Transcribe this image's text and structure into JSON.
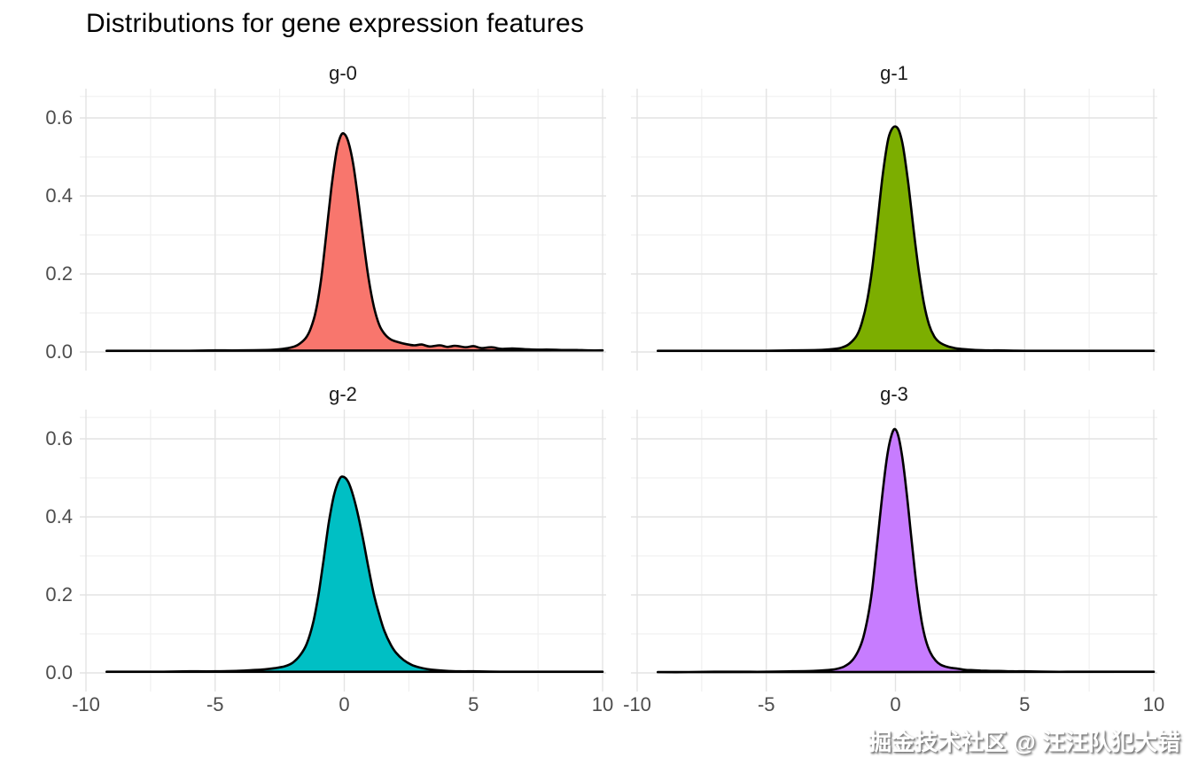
{
  "title": "Distributions for gene expression features",
  "watermark": {
    "text": "掘金技术社区 @ 汪汪队犯大错"
  },
  "chart_data": {
    "type": "area",
    "variant": "faceted-density",
    "title": "Distributions for gene expression features",
    "facets": [
      "g-0",
      "g-1",
      "g-2",
      "g-3"
    ],
    "xlabel": "",
    "ylabel": "",
    "legend": "none",
    "grid": "on",
    "xlim": [
      -10.25,
      10.15
    ],
    "ylim": [
      -0.048,
      0.675
    ],
    "x_ticks": [
      -10,
      -5,
      0,
      5,
      10
    ],
    "x_tick_labels": [
      "-10",
      "-5",
      "0",
      "5",
      "10"
    ],
    "x_minor_gridlines": [
      -7.5,
      -2.5,
      2.5,
      7.5
    ],
    "y_ticks": [
      0.0,
      0.2,
      0.4,
      0.6
    ],
    "y_tick_labels": [
      "0.0",
      "0.2",
      "0.4",
      "0.6"
    ],
    "y_minor_gridlines": [
      0.1,
      0.3,
      0.5,
      0.655
    ],
    "colors": {
      "axis_text": "#4d4d4d",
      "strip_text": "#1a1a1a",
      "grid_major": "#e3e3e3",
      "grid_minor": "#f0f0f0",
      "curve_outline": "#000000"
    },
    "panels": [
      {
        "label": "g-0",
        "fill": "#F8766D",
        "peak": {
          "x": 0,
          "density": 0.56
        },
        "density_points": [
          [
            -9.2,
            0.003
          ],
          [
            -8,
            0.003
          ],
          [
            -7,
            0.003
          ],
          [
            -6,
            0.003
          ],
          [
            -5,
            0.004
          ],
          [
            -4,
            0.004
          ],
          [
            -3,
            0.005
          ],
          [
            -2.5,
            0.007
          ],
          [
            -2.1,
            0.011
          ],
          [
            -1.8,
            0.018
          ],
          [
            -1.5,
            0.035
          ],
          [
            -1.3,
            0.06
          ],
          [
            -1.1,
            0.105
          ],
          [
            -0.9,
            0.185
          ],
          [
            -0.7,
            0.3
          ],
          [
            -0.5,
            0.42
          ],
          [
            -0.3,
            0.515
          ],
          [
            -0.15,
            0.552
          ],
          [
            -0.02,
            0.56
          ],
          [
            0.15,
            0.54
          ],
          [
            0.35,
            0.48
          ],
          [
            0.55,
            0.385
          ],
          [
            0.75,
            0.28
          ],
          [
            0.95,
            0.185
          ],
          [
            1.15,
            0.115
          ],
          [
            1.35,
            0.07
          ],
          [
            1.55,
            0.047
          ],
          [
            1.8,
            0.032
          ],
          [
            2.1,
            0.025
          ],
          [
            2.4,
            0.02
          ],
          [
            2.7,
            0.017
          ],
          [
            3,
            0.019
          ],
          [
            3.3,
            0.014
          ],
          [
            3.7,
            0.017
          ],
          [
            4,
            0.013
          ],
          [
            4.3,
            0.016
          ],
          [
            4.7,
            0.012
          ],
          [
            5,
            0.015
          ],
          [
            5.3,
            0.01
          ],
          [
            5.7,
            0.012
          ],
          [
            6.1,
            0.008
          ],
          [
            6.5,
            0.009
          ],
          [
            7,
            0.007
          ],
          [
            7.5,
            0.006
          ],
          [
            8,
            0.006
          ],
          [
            8.5,
            0.005
          ],
          [
            9,
            0.005
          ],
          [
            9.5,
            0.004
          ],
          [
            10,
            0.004
          ]
        ]
      },
      {
        "label": "g-1",
        "fill": "#7CAE00",
        "peak": {
          "x": 0,
          "density": 0.58
        },
        "density_points": [
          [
            -9.2,
            0.003
          ],
          [
            -8,
            0.003
          ],
          [
            -7,
            0.003
          ],
          [
            -6,
            0.003
          ],
          [
            -5,
            0.003
          ],
          [
            -4,
            0.004
          ],
          [
            -3,
            0.005
          ],
          [
            -2.5,
            0.007
          ],
          [
            -2.1,
            0.011
          ],
          [
            -1.8,
            0.02
          ],
          [
            -1.5,
            0.042
          ],
          [
            -1.3,
            0.075
          ],
          [
            -1.1,
            0.13
          ],
          [
            -0.9,
            0.215
          ],
          [
            -0.7,
            0.33
          ],
          [
            -0.5,
            0.45
          ],
          [
            -0.3,
            0.54
          ],
          [
            -0.15,
            0.57
          ],
          [
            0,
            0.578
          ],
          [
            0.15,
            0.565
          ],
          [
            0.3,
            0.525
          ],
          [
            0.5,
            0.43
          ],
          [
            0.7,
            0.315
          ],
          [
            0.9,
            0.21
          ],
          [
            1.1,
            0.125
          ],
          [
            1.3,
            0.07
          ],
          [
            1.5,
            0.04
          ],
          [
            1.7,
            0.025
          ],
          [
            2,
            0.015
          ],
          [
            2.3,
            0.01
          ],
          [
            2.7,
            0.007
          ],
          [
            3.1,
            0.005
          ],
          [
            3.6,
            0.004
          ],
          [
            4,
            0.004
          ],
          [
            5,
            0.003
          ],
          [
            6,
            0.003
          ],
          [
            7,
            0.003
          ],
          [
            8,
            0.003
          ],
          [
            9,
            0.003
          ],
          [
            10,
            0.003
          ]
        ]
      },
      {
        "label": "g-2",
        "fill": "#00BFC4",
        "peak": {
          "x": 0,
          "density": 0.5
        },
        "density_points": [
          [
            -9.2,
            0.003
          ],
          [
            -8,
            0.003
          ],
          [
            -7,
            0.003
          ],
          [
            -6,
            0.004
          ],
          [
            -5,
            0.004
          ],
          [
            -4.2,
            0.005
          ],
          [
            -3.6,
            0.007
          ],
          [
            -3.1,
            0.009
          ],
          [
            -2.7,
            0.012
          ],
          [
            -2.3,
            0.017
          ],
          [
            -2,
            0.026
          ],
          [
            -1.7,
            0.046
          ],
          [
            -1.45,
            0.075
          ],
          [
            -1.2,
            0.13
          ],
          [
            -1,
            0.2
          ],
          [
            -0.8,
            0.29
          ],
          [
            -0.6,
            0.385
          ],
          [
            -0.4,
            0.455
          ],
          [
            -0.2,
            0.495
          ],
          [
            -0.05,
            0.503
          ],
          [
            0.15,
            0.49
          ],
          [
            0.35,
            0.453
          ],
          [
            0.55,
            0.4
          ],
          [
            0.75,
            0.335
          ],
          [
            0.95,
            0.265
          ],
          [
            1.15,
            0.2
          ],
          [
            1.35,
            0.15
          ],
          [
            1.55,
            0.108
          ],
          [
            1.8,
            0.072
          ],
          [
            2,
            0.052
          ],
          [
            2.3,
            0.033
          ],
          [
            2.6,
            0.021
          ],
          [
            2.9,
            0.014
          ],
          [
            3.2,
            0.01
          ],
          [
            3.6,
            0.007
          ],
          [
            4,
            0.005
          ],
          [
            4.5,
            0.004
          ],
          [
            5,
            0.004
          ],
          [
            6,
            0.003
          ],
          [
            7,
            0.003
          ],
          [
            8,
            0.003
          ],
          [
            9,
            0.003
          ],
          [
            10,
            0.003
          ]
        ]
      },
      {
        "label": "g-3",
        "fill": "#C77CFF",
        "peak": {
          "x": 0,
          "density": 0.62
        },
        "density_points": [
          [
            -9.2,
            0.002
          ],
          [
            -8,
            0.002
          ],
          [
            -7,
            0.003
          ],
          [
            -6,
            0.003
          ],
          [
            -5,
            0.003
          ],
          [
            -4,
            0.004
          ],
          [
            -3.2,
            0.005
          ],
          [
            -2.7,
            0.007
          ],
          [
            -2.3,
            0.01
          ],
          [
            -2,
            0.016
          ],
          [
            -1.7,
            0.03
          ],
          [
            -1.45,
            0.055
          ],
          [
            -1.25,
            0.09
          ],
          [
            -1.05,
            0.15
          ],
          [
            -0.9,
            0.215
          ],
          [
            -0.75,
            0.305
          ],
          [
            -0.6,
            0.4
          ],
          [
            -0.45,
            0.49
          ],
          [
            -0.3,
            0.565
          ],
          [
            -0.15,
            0.61
          ],
          [
            -0.02,
            0.625
          ],
          [
            0.12,
            0.605
          ],
          [
            0.27,
            0.55
          ],
          [
            0.42,
            0.47
          ],
          [
            0.57,
            0.375
          ],
          [
            0.72,
            0.28
          ],
          [
            0.87,
            0.195
          ],
          [
            1.02,
            0.13
          ],
          [
            1.17,
            0.085
          ],
          [
            1.35,
            0.052
          ],
          [
            1.55,
            0.032
          ],
          [
            1.75,
            0.021
          ],
          [
            1.95,
            0.016
          ],
          [
            2.15,
            0.013
          ],
          [
            2.4,
            0.011
          ],
          [
            2.7,
            0.008
          ],
          [
            3,
            0.007
          ],
          [
            3.3,
            0.006
          ],
          [
            3.7,
            0.005
          ],
          [
            4,
            0.005
          ],
          [
            4.5,
            0.004
          ],
          [
            5,
            0.004
          ],
          [
            6,
            0.003
          ],
          [
            7,
            0.003
          ],
          [
            8,
            0.003
          ],
          [
            9,
            0.003
          ],
          [
            10,
            0.003
          ]
        ]
      }
    ]
  }
}
